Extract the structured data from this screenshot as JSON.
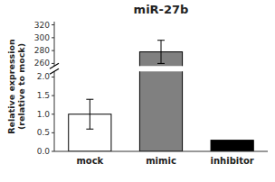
{
  "chart_data": {
    "type": "bar",
    "title": "miR-27b",
    "categories": [
      "mock",
      "mimic",
      "inhibitor"
    ],
    "values": [
      1.0,
      278.0,
      0.3
    ],
    "errors": [
      0.4,
      18.0,
      0.0
    ],
    "colors": [
      "white",
      "#808080",
      "black"
    ],
    "ylabel": "Relative expression\n(relative to mock)",
    "ylim": [
      [
        0.0,
        2.15
      ],
      [
        256,
        325
      ]
    ],
    "yticks": [
      [
        {
          "value": 0.0,
          "label": "0.0"
        },
        0.5,
        {
          "value": 1.0,
          "label": "1.0"
        },
        1.5,
        {
          "value": 2.0,
          "label": "2.0"
        }
      ],
      [
        260,
        280,
        300,
        320
      ]
    ]
  }
}
